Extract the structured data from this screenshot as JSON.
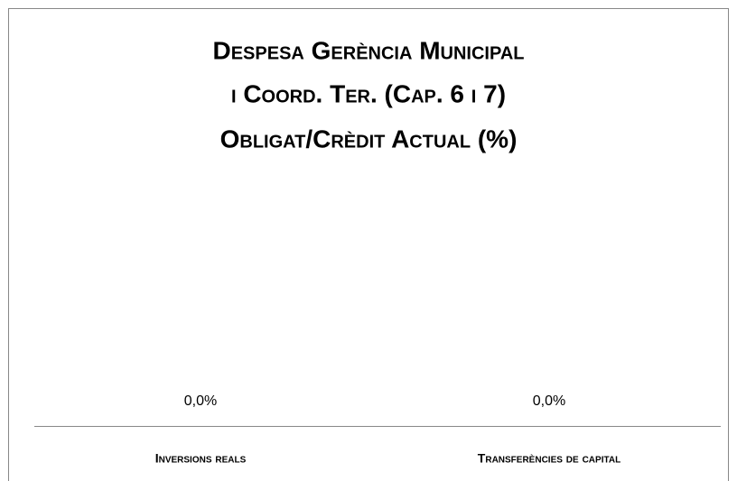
{
  "chart_data": {
    "type": "bar",
    "title": [
      "Despesa Gerència Municipal",
      "i Coord. Ter. (Cap. 6 i 7)",
      "Obligat/Crèdit Actual (%)"
    ],
    "categories": [
      "Inversions reals",
      "Transferències de capital"
    ],
    "values": [
      0,
      0
    ],
    "value_labels": [
      "0,0%",
      "0,0%"
    ],
    "color": "#4f81bd",
    "ylim": [
      0,
      100
    ]
  }
}
